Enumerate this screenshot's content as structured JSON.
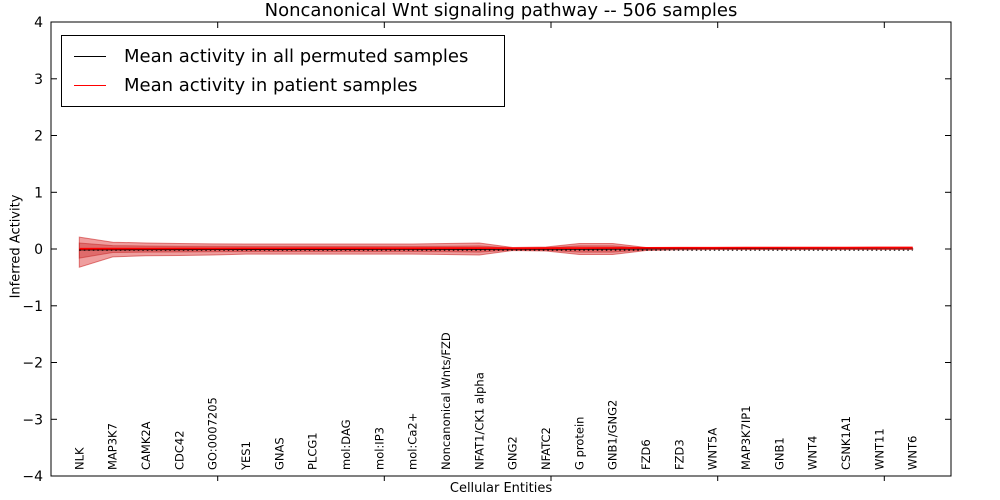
{
  "chart_data": {
    "type": "area",
    "title": "Noncanonical Wnt signaling pathway -- 506 samples",
    "xlabel": "Cellular Entities",
    "ylabel": "Inferred Activity",
    "ylim": [
      -4,
      4
    ],
    "yticks": [
      4,
      3,
      2,
      1,
      0,
      -1,
      -2,
      -3,
      -4
    ],
    "ytick_labels": [
      "4",
      "3",
      "2",
      "1",
      "0",
      "−1",
      "−2",
      "−3",
      "−4"
    ],
    "x_axis": {
      "range": [
        0,
        27
      ],
      "major_ticks": [
        5,
        10,
        15,
        20,
        25
      ],
      "entity_offset": 0.85,
      "grid": false
    },
    "categories": [
      "NLK",
      "MAP3K7",
      "CAMK2A",
      "CDC42",
      "GO:0007205",
      "YES1",
      "GNAS",
      "PLCG1",
      "mol:DAG",
      "mol:IP3",
      "mol:Ca2+",
      "Noncanonical Wnts/FZD",
      "NFAT1/CK1 alpha",
      "GNG2",
      "NFATC2",
      "G protein",
      "GNB1/GNG2",
      "FZD6",
      "FZD3",
      "WNT5A",
      "MAP3K7IP1",
      "GNB1",
      "WNT4",
      "CSNK1A1",
      "WNT11",
      "WNT6"
    ],
    "series": [
      {
        "name": "Mean activity in all permuted samples",
        "color": "#000000",
        "style": "solid",
        "width": 1.3,
        "values": [
          -0.012,
          -0.01,
          -0.009,
          -0.008,
          -0.007,
          -0.006,
          -0.006,
          -0.005,
          -0.005,
          -0.004,
          -0.004,
          -0.004,
          -0.003,
          -0.002,
          -0.002,
          -0.001,
          0.0,
          0.005,
          0.008,
          0.01,
          0.012,
          0.014,
          0.015,
          0.016,
          0.017,
          0.018
        ]
      },
      {
        "name": "Mean activity in patient samples",
        "color": "#ff0000",
        "style": "solid",
        "width": 1.8,
        "values": [
          0.004,
          0.006,
          0.007,
          0.008,
          0.009,
          0.01,
          0.011,
          0.012,
          0.012,
          0.013,
          0.013,
          0.014,
          0.015,
          0.012,
          0.014,
          0.016,
          0.017,
          0.02,
          0.021,
          0.022,
          0.023,
          0.024,
          0.024,
          0.025,
          0.026,
          0.026
        ]
      },
      {
        "name": "baseline-dotted",
        "color": "#000000",
        "style": "dotted",
        "width": 1.2,
        "values": [
          -0.022,
          -0.022,
          -0.022,
          -0.022,
          -0.022,
          -0.022,
          -0.022,
          -0.022,
          -0.022,
          -0.022,
          -0.022,
          -0.022,
          -0.022,
          -0.022,
          -0.022,
          -0.022,
          -0.022,
          -0.022,
          -0.022,
          -0.022,
          -0.022,
          -0.022,
          -0.022,
          -0.022,
          -0.022,
          -0.022
        ]
      }
    ],
    "bands": [
      {
        "name": "patient-band-outer",
        "fill": "rgba(220,40,40,0.45)",
        "edge": "rgba(200,30,30,0.55)",
        "upper": [
          0.21,
          0.12,
          0.105,
          0.097,
          0.09,
          0.088,
          0.088,
          0.088,
          0.088,
          0.088,
          0.088,
          0.097,
          0.105,
          0.026,
          0.035,
          0.097,
          0.097,
          0.026,
          0.014,
          0.008,
          0.008,
          0.008,
          0.008,
          0.008,
          0.008,
          0.008
        ],
        "lower": [
          -0.32,
          -0.14,
          -0.12,
          -0.115,
          -0.105,
          -0.09,
          -0.09,
          -0.09,
          -0.09,
          -0.09,
          -0.09,
          -0.097,
          -0.105,
          -0.026,
          -0.035,
          -0.097,
          -0.097,
          -0.026,
          -0.014,
          -0.008,
          -0.008,
          -0.008,
          -0.008,
          -0.008,
          -0.008,
          -0.008
        ]
      },
      {
        "name": "patient-band-inner",
        "fill": "rgba(200,30,30,0.40)",
        "edge": "rgba(190,25,25,0.45)",
        "upper": [
          0.105,
          0.06,
          0.053,
          0.05,
          0.048,
          0.045,
          0.045,
          0.045,
          0.045,
          0.045,
          0.045,
          0.05,
          0.055,
          0.015,
          0.02,
          0.055,
          0.055,
          0.015,
          0.007,
          0.004,
          0.004,
          0.004,
          0.004,
          0.004,
          0.004,
          0.004
        ],
        "lower": [
          -0.16,
          -0.062,
          -0.055,
          -0.052,
          -0.048,
          -0.045,
          -0.045,
          -0.045,
          -0.045,
          -0.045,
          -0.045,
          -0.05,
          -0.055,
          -0.015,
          -0.02,
          -0.055,
          -0.055,
          -0.015,
          -0.007,
          -0.004,
          -0.004,
          -0.004,
          -0.004,
          -0.004,
          -0.004,
          -0.004
        ]
      }
    ],
    "legend": {
      "position": "upper left",
      "entries": [
        {
          "label": "Mean activity in all permuted samples",
          "color": "#000000"
        },
        {
          "label": "Mean activity in patient samples",
          "color": "#ff0000"
        }
      ]
    }
  }
}
